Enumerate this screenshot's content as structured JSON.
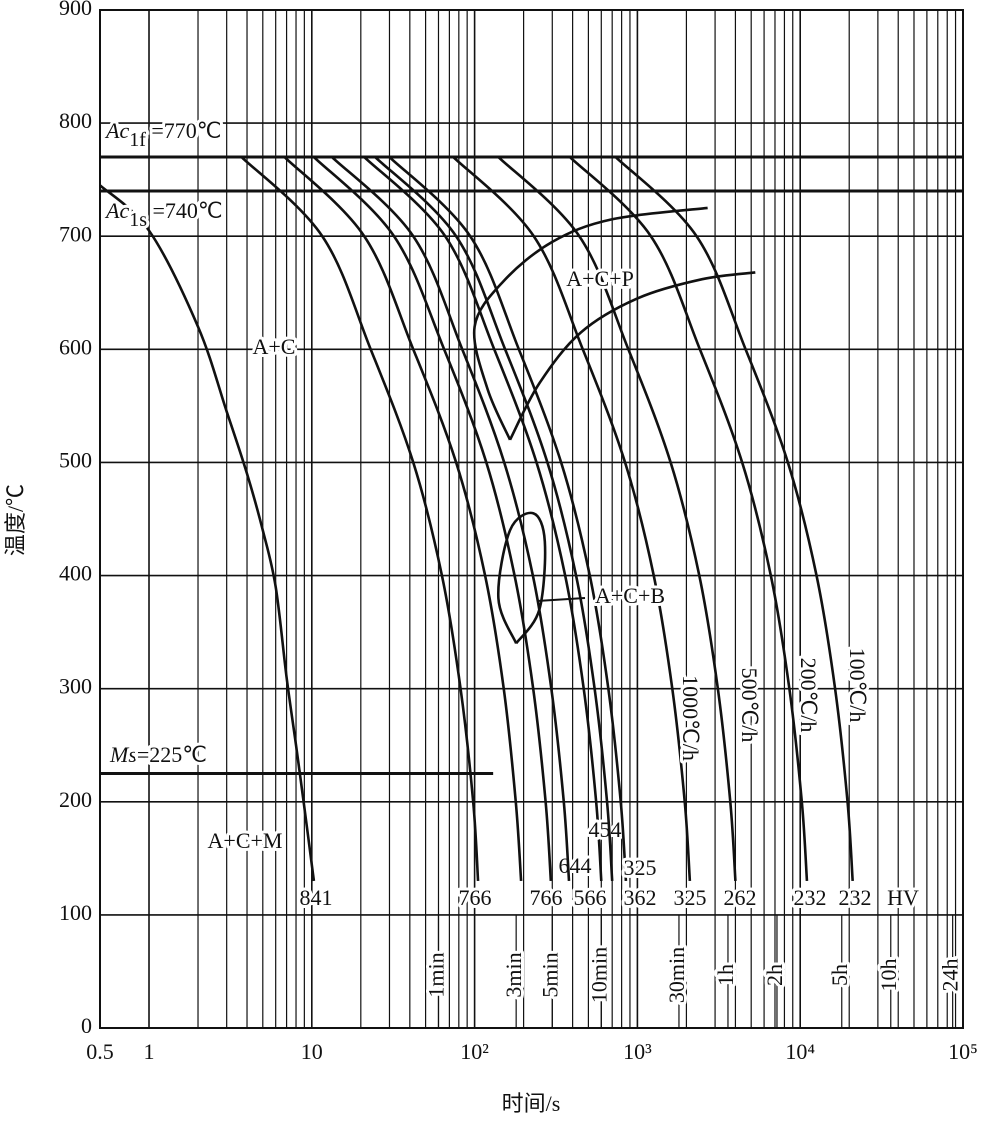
{
  "chart_data": {
    "type": "cct",
    "x_label": "时间/s",
    "y_label": "温度/℃",
    "x_log": true,
    "xlim": [
      0.5,
      100000
    ],
    "ylim": [
      0,
      900
    ],
    "xticks": [
      0.5,
      1,
      10,
      {
        "value": 100,
        "label": "10²"
      },
      {
        "value": 1000,
        "label": "10³"
      },
      {
        "value": 10000,
        "label": "10⁴"
      },
      {
        "value": 100000,
        "label": "10⁵"
      }
    ],
    "yticks": [
      0,
      100,
      200,
      300,
      400,
      500,
      600,
      700,
      800,
      900
    ],
    "x_minor_grid": [
      2,
      3,
      4,
      5,
      6,
      7,
      8,
      9,
      20,
      30,
      40,
      50,
      60,
      70,
      80,
      90,
      200,
      300,
      400,
      500,
      600,
      700,
      800,
      900,
      2000,
      3000,
      4000,
      5000,
      6000,
      7000,
      8000,
      9000,
      20000,
      30000,
      40000,
      50000,
      60000,
      70000,
      80000,
      90000
    ],
    "grid": true,
    "color": "#111111",
    "time_marks": [
      {
        "value": 60,
        "label": "1min"
      },
      {
        "value": 180,
        "label": "3min"
      },
      {
        "value": 300,
        "label": "5min"
      },
      {
        "value": 600,
        "label": "10min"
      },
      {
        "value": 1800,
        "label": "30min"
      },
      {
        "value": 3600,
        "label": "1h"
      },
      {
        "value": 7200,
        "label": "2h"
      },
      {
        "value": 18000,
        "label": "5h"
      },
      {
        "value": 36000,
        "label": "10h"
      },
      {
        "value": 86400,
        "label": "24h"
      }
    ],
    "reference_lines": [
      {
        "value": 770,
        "symbol": "Ac",
        "subscript": "1f",
        "text": " =770℃"
      },
      {
        "value": 740,
        "symbol": "Ac",
        "subscript": "1s",
        "text": " =740℃"
      },
      {
        "value": 225,
        "symbol": "Ms",
        "text": "=225℃",
        "x_end": 130
      }
    ],
    "hardness_unit": "HV",
    "curves": [
      {
        "hardness": 841,
        "time": [
          0.5,
          1,
          2,
          3,
          4,
          5,
          6,
          7,
          8,
          9,
          10.3
        ],
        "temp": [
          745,
          705,
          620,
          545,
          490,
          440,
          390,
          310,
          250,
          195,
          130
        ]
      },
      {
        "hardness": 766,
        "time": [
          3.7,
          11.6,
          23,
          42,
          63,
          82,
          98,
          105
        ],
        "temp": [
          770,
          700,
          600,
          500,
          400,
          300,
          200,
          130
        ]
      },
      {
        "hardness": 766,
        "time": [
          6.8,
          21,
          42,
          77,
          116,
          151,
          179,
          193
        ],
        "temp": [
          770,
          700,
          600,
          500,
          400,
          300,
          200,
          130
        ]
      },
      {
        "hardness": 644,
        "time": [
          10.3,
          32,
          65,
          118,
          176,
          229,
          273,
          294
        ],
        "temp": [
          770,
          700,
          600,
          500,
          400,
          300,
          200,
          130
        ]
      },
      {
        "hardness": 566,
        "time": [
          13.3,
          42,
          84,
          152,
          228,
          296,
          353,
          380
        ],
        "temp": [
          770,
          700,
          600,
          500,
          400,
          300,
          200,
          130
        ]
      },
      {
        "hardness": 454,
        "time": [
          21,
          66,
          132,
          240,
          360,
          468,
          558,
          600
        ],
        "temp": [
          770,
          700,
          600,
          500,
          400,
          300,
          200,
          130
        ]
      },
      {
        "hardness": 362,
        "time": [
          24.5,
          77,
          154,
          280,
          420,
          546,
          651,
          700
        ],
        "temp": [
          770,
          700,
          600,
          500,
          400,
          300,
          200,
          130
        ]
      },
      {
        "hardness": 325,
        "time": [
          30,
          94,
          187,
          340,
          510,
          663,
          790,
          850
        ],
        "temp": [
          770,
          700,
          600,
          500,
          400,
          300,
          200,
          130
        ]
      },
      {
        "hardness": 325,
        "rate_label": "1000℃/h",
        "time": [
          74,
          231,
          462,
          840,
          1260,
          1638,
          1953,
          2100
        ],
        "temp": [
          770,
          700,
          600,
          500,
          400,
          300,
          200,
          130
        ]
      },
      {
        "hardness": 262,
        "rate_label": "500℃/h",
        "time": [
          140,
          440,
          880,
          1600,
          2400,
          3120,
          3720,
          4000
        ],
        "temp": [
          770,
          700,
          600,
          500,
          400,
          300,
          200,
          130
        ]
      },
      {
        "hardness": 232,
        "rate_label": "200℃/h",
        "time": [
          385,
          1210,
          2420,
          4400,
          6600,
          8580,
          10230,
          11000
        ],
        "temp": [
          770,
          700,
          600,
          500,
          400,
          300,
          200,
          130
        ]
      },
      {
        "hardness": 232,
        "rate_label": "100℃/h",
        "time": [
          735,
          2310,
          4620,
          8400,
          12600,
          16380,
          19530,
          21000
        ],
        "temp": [
          770,
          700,
          600,
          500,
          400,
          300,
          200,
          130
        ]
      }
    ],
    "boundaries": [
      {
        "time": [
          165,
          120,
          100,
          150,
          300,
          700,
          2700
        ],
        "temp": [
          520,
          565,
          620,
          660,
          695,
          715,
          725
        ]
      },
      {
        "time": [
          165,
          250,
          450,
          1000,
          2500,
          5300
        ],
        "temp": [
          520,
          570,
          615,
          645,
          662,
          668
        ]
      },
      {
        "time": [
          180,
          140,
          165,
          230,
          270,
          250,
          180
        ],
        "temp": [
          340,
          380,
          440,
          455,
          430,
          370,
          340
        ]
      }
    ],
    "regions": [
      "A+C",
      "A+C+P",
      "A+C+B",
      "A+C+M"
    ]
  }
}
